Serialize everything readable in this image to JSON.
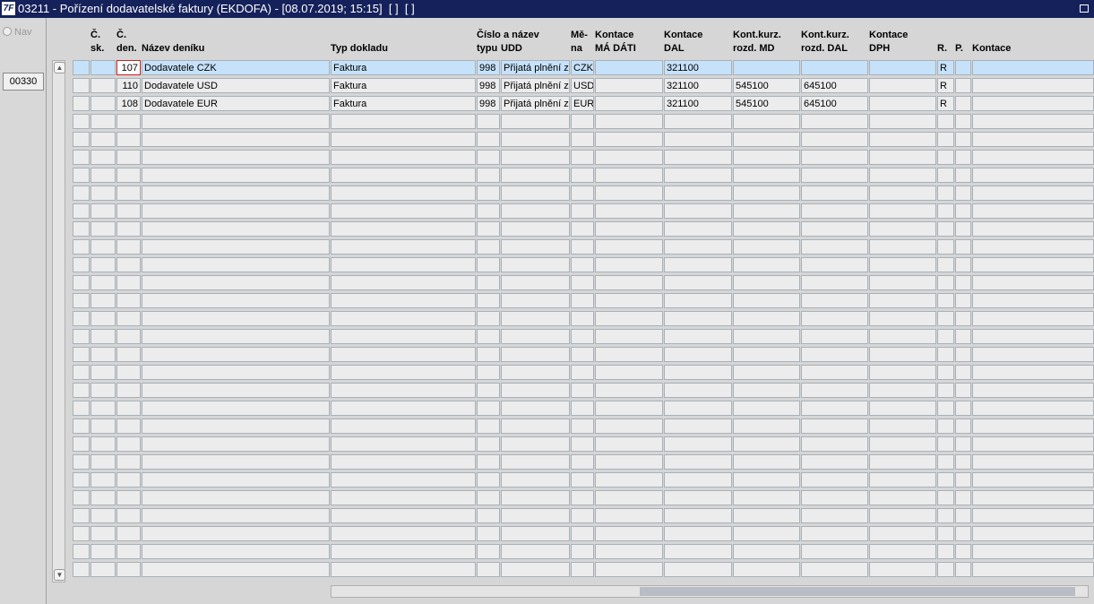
{
  "window": {
    "title": "03211 - Pořízení dodavatelské faktury (EKDOFA) - [08.07.2019; 15:15]  [ ]  [ ]",
    "nav_label": "Nav",
    "button": "00330"
  },
  "header": {
    "columns": [
      [
        "Č.",
        "sk."
      ],
      [
        "Č.",
        "den."
      ],
      [
        "Název deníku"
      ],
      [
        "Typ dokladu"
      ],
      [
        "Číslo a název",
        "typu"
      ],
      [
        "UDD"
      ],
      [
        "Mě-",
        "na"
      ],
      [
        "Kontace",
        "MÁ DÁTI"
      ],
      [
        "Kontace",
        "DAL"
      ],
      [
        "Kont.kurz.",
        "rozd. MD"
      ],
      [
        "Kont.kurz.",
        "rozd. DAL"
      ],
      [
        "Kontace",
        "DPH"
      ],
      [
        "R."
      ],
      [
        "P."
      ],
      [
        "Kontace"
      ]
    ]
  },
  "table": {
    "rows": [
      {
        "den": "107",
        "nazev": "Dodavatele CZK",
        "typ": "Faktura",
        "typ_udd": "998",
        "udd": "Přijatá plnění z",
        "mena": "CZK",
        "dal": "321100",
        "r": "R"
      },
      {
        "den": "110",
        "nazev": "Dodavatele USD",
        "typ": "Faktura",
        "typ_udd": "998",
        "udd": "Přijatá plnění z",
        "mena": "USD",
        "dal": "321100",
        "kurz_md": "545100",
        "kurz_dal": "645100",
        "r": "R"
      },
      {
        "den": "108",
        "nazev": "Dodavatele EUR",
        "typ": "Faktura",
        "typ_udd": "998",
        "udd": "Přijatá plnění z",
        "mena": "EUR",
        "dal": "321100",
        "kurz_md": "545100",
        "kurz_dal": "645100",
        "r": "R"
      }
    ]
  }
}
